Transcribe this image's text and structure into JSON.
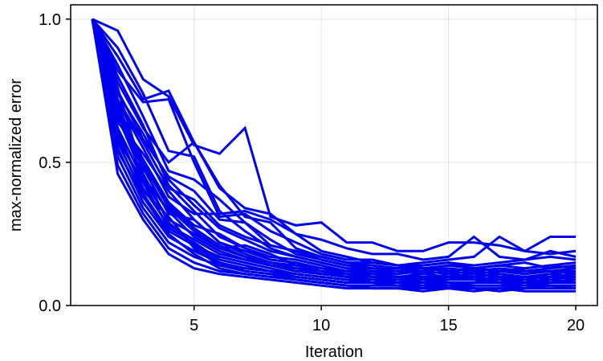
{
  "chart_data": {
    "type": "line",
    "title": "",
    "xlabel": "Iteration",
    "ylabel": "max-normalized error",
    "xlim": [
      0.15,
      20.85
    ],
    "ylim": [
      0.0,
      1.05
    ],
    "x_ticks": [
      5,
      10,
      15,
      20
    ],
    "x_tick_labels": [
      "5",
      "10",
      "15",
      "20"
    ],
    "y_ticks": [
      0.0,
      0.5,
      1.0
    ],
    "y_tick_labels": [
      "0.0",
      "0.5",
      "1.0"
    ],
    "grid": true,
    "legend": "none",
    "line_color": "#0000ee",
    "x": [
      1,
      2,
      3,
      4,
      5,
      6,
      7,
      8,
      9,
      10,
      11,
      12,
      13,
      14,
      15,
      16,
      17,
      18,
      19,
      20
    ],
    "series": [
      {
        "values": [
          1.0,
          0.96,
          0.79,
          0.73,
          0.56,
          0.53,
          0.62,
          0.31,
          0.28,
          0.29,
          0.22,
          0.22,
          0.19,
          0.19,
          0.22,
          0.22,
          0.21,
          0.19,
          0.24,
          0.24
        ]
      },
      {
        "values": [
          1.0,
          0.87,
          0.72,
          0.75,
          0.57,
          0.41,
          0.34,
          0.32,
          0.25,
          0.23,
          0.2,
          0.18,
          0.18,
          0.16,
          0.17,
          0.24,
          0.17,
          0.16,
          0.19,
          0.17
        ]
      },
      {
        "values": [
          1.0,
          0.82,
          0.71,
          0.72,
          0.5,
          0.31,
          0.32,
          0.26,
          0.22,
          0.18,
          0.16,
          0.16,
          0.14,
          0.15,
          0.16,
          0.17,
          0.24,
          0.19,
          0.18,
          0.19
        ]
      },
      {
        "values": [
          1.0,
          0.78,
          0.62,
          0.5,
          0.57,
          0.42,
          0.31,
          0.29,
          0.2,
          0.17,
          0.15,
          0.14,
          0.13,
          0.14,
          0.15,
          0.13,
          0.14,
          0.13,
          0.14,
          0.15
        ]
      },
      {
        "values": [
          1.0,
          0.75,
          0.58,
          0.45,
          0.4,
          0.3,
          0.29,
          0.21,
          0.19,
          0.16,
          0.14,
          0.13,
          0.13,
          0.12,
          0.14,
          0.13,
          0.12,
          0.12,
          0.13,
          0.14
        ]
      },
      {
        "values": [
          1.0,
          0.71,
          0.55,
          0.38,
          0.32,
          0.32,
          0.33,
          0.3,
          0.25,
          0.19,
          0.17,
          0.15,
          0.14,
          0.13,
          0.12,
          0.13,
          0.12,
          0.11,
          0.12,
          0.13
        ]
      },
      {
        "values": [
          1.0,
          0.68,
          0.51,
          0.36,
          0.28,
          0.25,
          0.2,
          0.17,
          0.16,
          0.14,
          0.12,
          0.12,
          0.11,
          0.12,
          0.11,
          0.12,
          0.11,
          0.1,
          0.11,
          0.12
        ]
      },
      {
        "values": [
          1.0,
          0.65,
          0.48,
          0.32,
          0.3,
          0.22,
          0.19,
          0.16,
          0.15,
          0.13,
          0.12,
          0.11,
          0.1,
          0.11,
          0.1,
          0.11,
          0.1,
          0.1,
          0.09,
          0.1
        ]
      },
      {
        "values": [
          1.0,
          0.62,
          0.44,
          0.3,
          0.25,
          0.2,
          0.17,
          0.15,
          0.14,
          0.12,
          0.11,
          0.1,
          0.1,
          0.09,
          0.1,
          0.09,
          0.1,
          0.09,
          0.1,
          0.09
        ]
      },
      {
        "values": [
          1.0,
          0.6,
          0.41,
          0.28,
          0.23,
          0.18,
          0.16,
          0.14,
          0.12,
          0.11,
          0.1,
          0.09,
          0.09,
          0.08,
          0.09,
          0.09,
          0.08,
          0.09,
          0.08,
          0.09
        ]
      },
      {
        "values": [
          1.0,
          0.57,
          0.39,
          0.26,
          0.21,
          0.17,
          0.15,
          0.13,
          0.11,
          0.1,
          0.09,
          0.08,
          0.08,
          0.08,
          0.07,
          0.08,
          0.08,
          0.07,
          0.08,
          0.08
        ]
      },
      {
        "values": [
          1.0,
          0.55,
          0.36,
          0.24,
          0.19,
          0.15,
          0.13,
          0.12,
          0.1,
          0.09,
          0.08,
          0.08,
          0.07,
          0.07,
          0.07,
          0.07,
          0.07,
          0.07,
          0.07,
          0.07
        ]
      },
      {
        "values": [
          1.0,
          0.52,
          0.34,
          0.22,
          0.17,
          0.14,
          0.12,
          0.11,
          0.09,
          0.08,
          0.07,
          0.07,
          0.07,
          0.06,
          0.07,
          0.06,
          0.06,
          0.06,
          0.07,
          0.06
        ]
      },
      {
        "values": [
          1.0,
          0.49,
          0.32,
          0.2,
          0.15,
          0.12,
          0.11,
          0.1,
          0.09,
          0.08,
          0.07,
          0.06,
          0.06,
          0.06,
          0.06,
          0.06,
          0.05,
          0.06,
          0.06,
          0.06
        ]
      },
      {
        "values": [
          1.0,
          0.46,
          0.3,
          0.18,
          0.13,
          0.11,
          0.1,
          0.09,
          0.08,
          0.07,
          0.06,
          0.06,
          0.06,
          0.05,
          0.06,
          0.05,
          0.06,
          0.05,
          0.05,
          0.05
        ]
      },
      {
        "values": [
          1.0,
          0.7,
          0.5,
          0.34,
          0.26,
          0.2,
          0.21,
          0.18,
          0.14,
          0.13,
          0.12,
          0.12,
          0.1,
          0.11,
          0.12,
          0.11,
          0.12,
          0.13,
          0.14,
          0.13
        ]
      },
      {
        "values": [
          1.0,
          0.66,
          0.45,
          0.33,
          0.24,
          0.19,
          0.16,
          0.14,
          0.13,
          0.12,
          0.1,
          0.11,
          0.1,
          0.09,
          0.11,
          0.1,
          0.09,
          0.1,
          0.11,
          0.1
        ]
      },
      {
        "values": [
          1.0,
          0.58,
          0.43,
          0.27,
          0.22,
          0.16,
          0.14,
          0.12,
          0.11,
          0.1,
          0.09,
          0.09,
          0.08,
          0.09,
          0.08,
          0.08,
          0.09,
          0.08,
          0.09,
          0.08
        ]
      },
      {
        "values": [
          1.0,
          0.64,
          0.53,
          0.4,
          0.3,
          0.22,
          0.18,
          0.15,
          0.13,
          0.11,
          0.1,
          0.1,
          0.09,
          0.1,
          0.09,
          0.1,
          0.09,
          0.09,
          0.1,
          0.1
        ]
      },
      {
        "values": [
          1.0,
          0.74,
          0.6,
          0.44,
          0.35,
          0.27,
          0.23,
          0.19,
          0.17,
          0.15,
          0.13,
          0.13,
          0.12,
          0.12,
          0.13,
          0.12,
          0.13,
          0.12,
          0.12,
          0.11
        ]
      },
      {
        "values": [
          1.0,
          0.84,
          0.66,
          0.47,
          0.44,
          0.37,
          0.29,
          0.23,
          0.18,
          0.16,
          0.14,
          0.14,
          0.13,
          0.13,
          0.14,
          0.13,
          0.14,
          0.15,
          0.13,
          0.14
        ]
      },
      {
        "values": [
          1.0,
          0.9,
          0.74,
          0.54,
          0.52,
          0.33,
          0.26,
          0.2,
          0.17,
          0.15,
          0.13,
          0.12,
          0.12,
          0.11,
          0.12,
          0.11,
          0.12,
          0.11,
          0.12,
          0.12
        ]
      },
      {
        "values": [
          1.0,
          0.8,
          0.63,
          0.42,
          0.33,
          0.24,
          0.2,
          0.16,
          0.15,
          0.13,
          0.11,
          0.11,
          0.1,
          0.1,
          0.1,
          0.1,
          0.11,
          0.1,
          0.1,
          0.11
        ]
      },
      {
        "values": [
          1.0,
          0.76,
          0.46,
          0.29,
          0.21,
          0.15,
          0.12,
          0.11,
          0.1,
          0.09,
          0.08,
          0.08,
          0.08,
          0.07,
          0.08,
          0.07,
          0.07,
          0.08,
          0.07,
          0.07
        ]
      },
      {
        "values": [
          1.0,
          0.54,
          0.38,
          0.25,
          0.18,
          0.13,
          0.11,
          0.1,
          0.09,
          0.08,
          0.07,
          0.07,
          0.07,
          0.07,
          0.06,
          0.07,
          0.07,
          0.06,
          0.07,
          0.07
        ]
      },
      {
        "values": [
          1.0,
          0.72,
          0.57,
          0.41,
          0.37,
          0.28,
          0.24,
          0.21,
          0.19,
          0.17,
          0.15,
          0.15,
          0.14,
          0.14,
          0.15,
          0.14,
          0.15,
          0.16,
          0.17,
          0.16
        ]
      },
      {
        "values": [
          1.0,
          0.67,
          0.49,
          0.35,
          0.27,
          0.21,
          0.17,
          0.14,
          0.12,
          0.11,
          0.1,
          0.09,
          0.09,
          0.09,
          0.09,
          0.09,
          0.09,
          0.09,
          0.08,
          0.09
        ]
      },
      {
        "values": [
          1.0,
          0.61,
          0.4,
          0.31,
          0.2,
          0.14,
          0.13,
          0.12,
          0.1,
          0.09,
          0.08,
          0.09,
          0.08,
          0.08,
          0.08,
          0.08,
          0.08,
          0.08,
          0.08,
          0.08
        ]
      }
    ]
  }
}
